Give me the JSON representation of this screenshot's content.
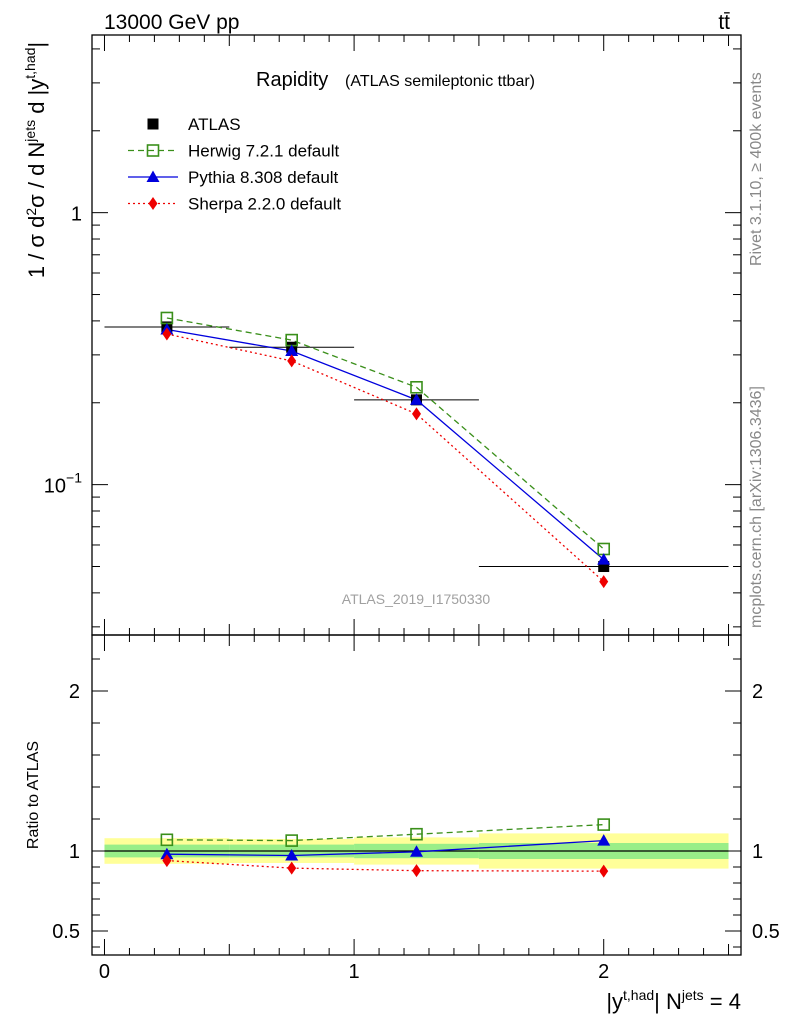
{
  "header": {
    "energy_label": "13000 GeV pp",
    "process_label": "tt̄"
  },
  "side_labels": {
    "rivet": "Rivet 3.1.10, ≥ 400k events",
    "mcplots": "mcplots.cern.ch [arXiv:1306.3436]"
  },
  "chart_data": [
    {
      "type": "line",
      "panel": "main",
      "title": "Rapidity",
      "subtitle": "(ATLAS semileptonic ttbar)",
      "watermark": "ATLAS_2019_I1750330",
      "ylabel": "1 / σ d²σ / d Nʲᵉᵗˢ d |yᵗ,ʰᵃᵈ|",
      "yscale": "log",
      "ylim": [
        0.028,
        4.5
      ],
      "xlim": [
        -0.05,
        2.55
      ],
      "yticks": [
        {
          "v": 0.1,
          "base": "10",
          "exp": "−1"
        },
        {
          "v": 1,
          "base": "1",
          "exp": ""
        }
      ],
      "legend_placement": "top-left",
      "x": [
        0.25,
        0.75,
        1.25,
        2.0
      ],
      "x_bins": [
        [
          0,
          0.5
        ],
        [
          0.5,
          1.0
        ],
        [
          1.0,
          1.5
        ],
        [
          1.5,
          2.5
        ]
      ],
      "series": [
        {
          "name": "ATLAS",
          "key": "data",
          "color": "#000000",
          "marker": "square-filled",
          "line": "none",
          "values": [
            0.38,
            0.32,
            0.205,
            0.05
          ]
        },
        {
          "name": "Herwig 7.2.1 default",
          "key": "herwig",
          "color": "#3a8f1a",
          "marker": "square-open",
          "line": "dashed",
          "values": [
            0.41,
            0.34,
            0.228,
            0.058
          ]
        },
        {
          "name": "Pythia 8.308 default",
          "key": "pythia",
          "color": "#0000dd",
          "marker": "triangle",
          "line": "solid",
          "values": [
            0.372,
            0.31,
            0.205,
            0.053
          ]
        },
        {
          "name": "Sherpa 2.2.0 default",
          "key": "sherpa",
          "color": "#ee0000",
          "marker": "diamond",
          "line": "dotted",
          "values": [
            0.358,
            0.285,
            0.182,
            0.044
          ]
        }
      ]
    },
    {
      "type": "line",
      "panel": "ratio",
      "ylabel": "Ratio to ATLAS",
      "xlabel": "|yᵗ,ʰᵃᵈ| Nʲᵉᵗˢ = 4",
      "ylim": [
        0.35,
        2.35
      ],
      "xlim": [
        -0.05,
        2.55
      ],
      "yticks": [
        0.5,
        1,
        2
      ],
      "xticks": [
        0,
        1,
        2
      ],
      "x": [
        0.25,
        0.75,
        1.25,
        2.0
      ],
      "x_bins": [
        [
          0,
          0.5
        ],
        [
          0.5,
          1.0
        ],
        [
          1.0,
          1.5
        ],
        [
          1.5,
          2.5
        ]
      ],
      "band_stat": [
        [
          0.96,
          1.04
        ],
        [
          0.96,
          1.04
        ],
        [
          0.955,
          1.045
        ],
        [
          0.95,
          1.05
        ]
      ],
      "band_total": [
        [
          0.92,
          1.08
        ],
        [
          0.925,
          1.075
        ],
        [
          0.915,
          1.085
        ],
        [
          0.89,
          1.11
        ]
      ],
      "series": [
        {
          "name": "Herwig 7.2.1 default",
          "key": "herwig",
          "color": "#3a8f1a",
          "marker": "square-open",
          "line": "dashed",
          "values": [
            1.07,
            1.065,
            1.105,
            1.165
          ]
        },
        {
          "name": "Pythia 8.308 default",
          "key": "pythia",
          "color": "#0000dd",
          "marker": "triangle",
          "line": "solid",
          "values": [
            0.98,
            0.972,
            0.995,
            1.065
          ]
        },
        {
          "name": "Sherpa 2.2.0 default",
          "key": "sherpa",
          "color": "#ee0000",
          "marker": "diamond",
          "line": "dotted",
          "values": [
            0.94,
            0.893,
            0.877,
            0.874
          ]
        }
      ]
    }
  ]
}
